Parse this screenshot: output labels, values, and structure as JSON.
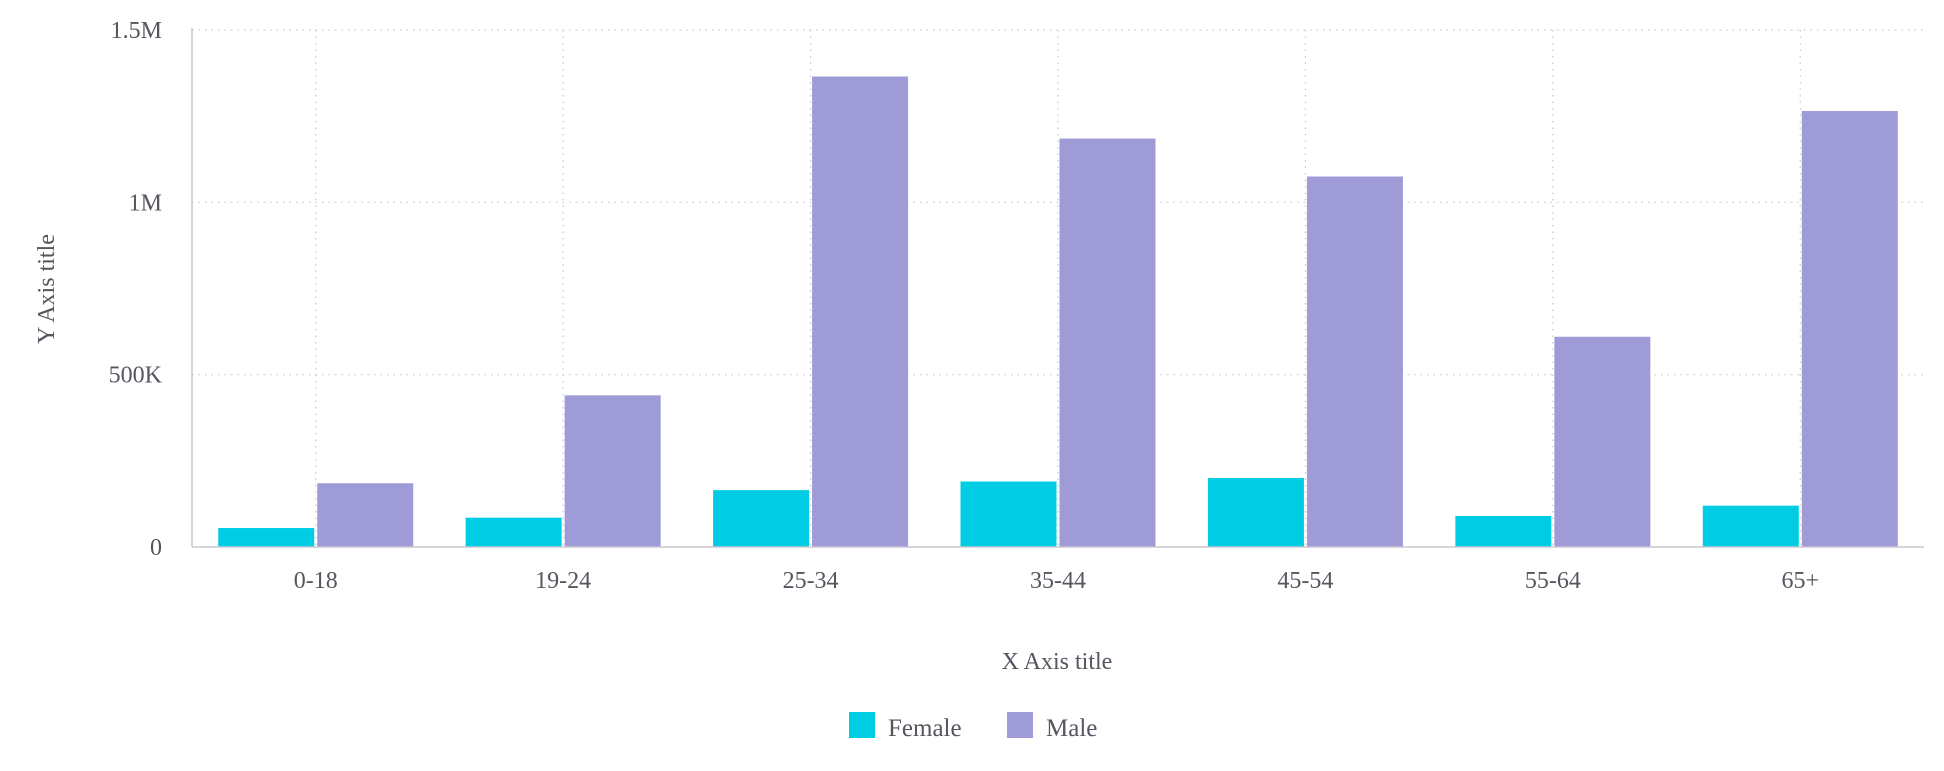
{
  "chart_data": {
    "type": "bar",
    "categories": [
      "0-18",
      "19-24",
      "25-34",
      "35-44",
      "45-54",
      "55-64",
      "65+"
    ],
    "series": [
      {
        "name": "Female",
        "color": "#00cde3",
        "values": [
          55000,
          85000,
          165000,
          190000,
          200000,
          90000,
          120000
        ]
      },
      {
        "name": "Male",
        "color": "#9e9bd7",
        "values": [
          185000,
          440000,
          1365000,
          1185000,
          1075000,
          610000,
          1265000
        ]
      }
    ],
    "xlabel": "X Axis title",
    "ylabel": "Y Axis title",
    "ylim": [
      0,
      1500000
    ],
    "yticks": [
      {
        "value": 0,
        "label": "0"
      },
      {
        "value": 500000,
        "label": "500K"
      },
      {
        "value": 1000000,
        "label": "1M"
      },
      {
        "value": 1500000,
        "label": "1.5M"
      }
    ],
    "grid": true,
    "legend_position": "bottom-center"
  }
}
